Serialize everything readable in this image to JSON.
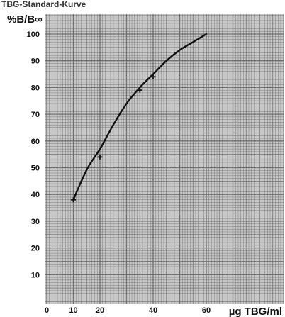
{
  "chart_data": {
    "type": "line",
    "title": "TBG-Standard-Kurve",
    "ylabel": "%B/B∞",
    "xlabel": "µg TBG/ml",
    "xlim": [
      0,
      60
    ],
    "ylim": [
      0,
      100
    ],
    "x_ticks": [
      0,
      10,
      20,
      40,
      60
    ],
    "y_ticks": [
      10,
      20,
      30,
      40,
      50,
      60,
      70,
      80,
      90,
      100
    ],
    "grid": true,
    "series": [
      {
        "points": [
          {
            "x": 10,
            "y": 38
          },
          {
            "x": 13,
            "y": 45
          },
          {
            "x": 16,
            "y": 51
          },
          {
            "x": 20,
            "y": 57
          },
          {
            "x": 25,
            "y": 66
          },
          {
            "x": 30,
            "y": 74
          },
          {
            "x": 35,
            "y": 80
          },
          {
            "x": 40,
            "y": 85
          },
          {
            "x": 45,
            "y": 90
          },
          {
            "x": 50,
            "y": 94
          },
          {
            "x": 55,
            "y": 97
          },
          {
            "x": 60,
            "y": 100
          }
        ]
      }
    ],
    "markers": [
      {
        "x": 10,
        "y": 38
      },
      {
        "x": 20,
        "y": 54
      },
      {
        "x": 35,
        "y": 79
      },
      {
        "x": 40,
        "y": 84
      }
    ],
    "colors": {
      "grid_paper": "#c9c9c9",
      "grid_line": "#6e6e6e",
      "curve": "#111111"
    }
  }
}
